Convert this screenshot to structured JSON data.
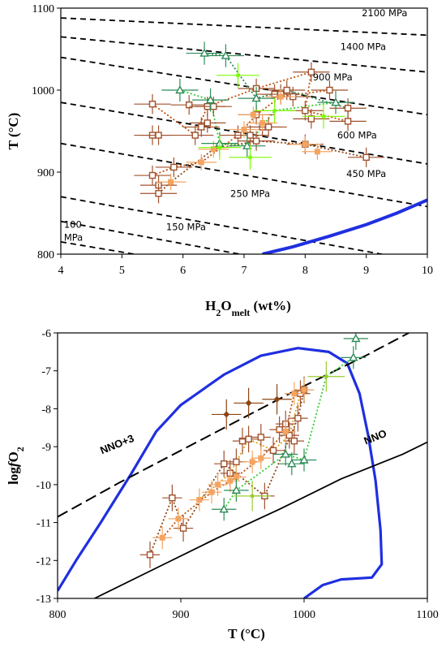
{
  "chart_data": [
    {
      "type": "scatter",
      "xlim": [
        4,
        10
      ],
      "ylim": [
        800,
        1100
      ],
      "x_ticks": [
        "4",
        "5",
        "6",
        "7",
        "8",
        "9",
        "10"
      ],
      "y_ticks": [
        "800",
        "900",
        "1000",
        "1100"
      ],
      "xlabel_main": "H",
      "xlabel_sub1": "2",
      "xlabel_mid": "O",
      "xlabel_sub2": "melt",
      "xlabel_tail": " (wt%)",
      "ylabel": "T (°C)",
      "grid": false,
      "isobars": [
        {
          "label": "2100 MPa",
          "line": [
            [
              4,
              1088
            ],
            [
              10,
              1067
            ]
          ],
          "label_at": [
            9.3,
            1090
          ]
        },
        {
          "label": "1400 MPa",
          "line": [
            [
              4,
              1065
            ],
            [
              10,
              1022
            ]
          ],
          "label_at": [
            8.95,
            1049
          ]
        },
        {
          "label": "900 MPa",
          "line": [
            [
              4,
              1040
            ],
            [
              10,
              970
            ]
          ],
          "label_at": [
            8.45,
            1012
          ]
        },
        {
          "label": "600 MPa",
          "line": [
            [
              4,
              985
            ],
            [
              10,
              910
            ]
          ],
          "label_at": [
            8.85,
            941
          ]
        },
        {
          "label": "450 MPa",
          "line": [
            [
              4,
              935
            ],
            [
              10,
              858
            ]
          ],
          "label_at": [
            9.0,
            894
          ]
        },
        {
          "label": "250 MPa",
          "line": [
            [
              4,
              870
            ],
            [
              10,
              790
            ]
          ],
          "label_at": [
            7.1,
            870
          ]
        },
        {
          "label": "150 MPa",
          "line": [
            [
              4,
              840
            ],
            [
              10,
              758
            ]
          ],
          "label_at": [
            6.05,
            829
          ]
        },
        {
          "label_line1": "100",
          "label_line2": "MPa",
          "line": [
            [
              4,
              815
            ],
            [
              5.2,
              800
            ]
          ],
          "label_at": [
            4.25,
            832
          ]
        }
      ],
      "solidus_curve": [
        [
          7.3,
          800
        ],
        [
          7.8,
          809
        ],
        [
          8.4,
          822
        ],
        [
          9.0,
          836
        ],
        [
          9.5,
          850
        ],
        [
          10,
          866
        ]
      ],
      "series": [
        {
          "marker": "open-square",
          "color": "#a0522d",
          "points": [
            [
              5.5,
              983
            ],
            [
              5.5,
              945
            ],
            [
              5.6,
              945
            ],
            [
              6.1,
              982
            ],
            [
              6.2,
              945
            ],
            [
              6.3,
              955
            ],
            [
              6.4,
              960
            ],
            [
              6.4,
              980
            ],
            [
              6.5,
              980
            ],
            [
              6.9,
              945
            ],
            [
              7.1,
              945
            ],
            [
              7.2,
              938
            ],
            [
              7.2,
              970
            ],
            [
              7.2,
              1002
            ],
            [
              7.3,
              955
            ],
            [
              7.4,
              955
            ],
            [
              7.5,
              995
            ],
            [
              7.6,
              995
            ],
            [
              7.7,
              1000
            ],
            [
              7.8,
              992
            ],
            [
              8.0,
              975
            ],
            [
              8.1,
              1022
            ],
            [
              8.4,
              1000
            ],
            [
              8.7,
              978
            ],
            [
              8.7,
              962
            ],
            [
              8.0,
              934
            ],
            [
              9.0,
              918
            ],
            [
              5.85,
              906
            ],
            [
              5.5,
              896
            ],
            [
              5.6,
              884
            ],
            [
              5.6,
              874
            ],
            [
              8.1,
              965
            ]
          ],
          "error_bar_x": 0.3,
          "error_bar_y": 12
        },
        {
          "marker": "filled-square",
          "color": "#f4a460",
          "points": [
            [
              5.8,
              888
            ],
            [
              6.3,
              912
            ],
            [
              6.5,
              928
            ],
            [
              7.0,
              952
            ],
            [
              7.15,
              970
            ],
            [
              7.3,
              960
            ],
            [
              7.6,
              992
            ],
            [
              8.2,
              925
            ],
            [
              8.0,
              934
            ]
          ],
          "error_bar_x": 0.25,
          "error_bar_y": 10
        },
        {
          "marker": "open-triangle",
          "color": "#2e8b57",
          "points": [
            [
              6.35,
              1045
            ],
            [
              6.7,
              1042
            ],
            [
              5.95,
              1000
            ],
            [
              6.45,
              988
            ],
            [
              7.2,
              990
            ],
            [
              6.6,
              935
            ],
            [
              7.05,
              932
            ],
            [
              8.5,
              985
            ]
          ],
          "error_bar_x": 0.3,
          "error_bar_y": 14
        },
        {
          "marker": "cross",
          "color": "#7cfc00",
          "points": [
            [
              6.9,
              1018
            ],
            [
              7.1,
              918
            ],
            [
              7.5,
              975
            ],
            [
              8.3,
              968
            ],
            [
              6.6,
              930
            ]
          ],
          "error_bar_x": 0.35,
          "error_bar_y": 15
        }
      ],
      "tie_lines": [
        {
          "color": "#c0500a",
          "points": [
            [
              5.5,
              983
            ],
            [
              6.2,
              945
            ],
            [
              6.4,
              980
            ],
            [
              7.2,
              1002
            ],
            [
              8.1,
              1022
            ],
            [
              8.0,
              975
            ],
            [
              8.7,
              962
            ]
          ]
        },
        {
          "color": "#c0500a",
          "points": [
            [
              5.5,
              896
            ],
            [
              5.85,
              906
            ],
            [
              6.3,
              912
            ],
            [
              6.9,
              945
            ],
            [
              7.2,
              970
            ],
            [
              7.6,
              992
            ],
            [
              8.4,
              1000
            ]
          ]
        },
        {
          "color": "#8b4513",
          "points": [
            [
              5.6,
              874
            ],
            [
              5.8,
              888
            ],
            [
              6.5,
              928
            ],
            [
              7.2,
              938
            ],
            [
              8.0,
              934
            ],
            [
              9.0,
              918
            ]
          ]
        },
        {
          "color": "#32cd32",
          "points": [
            [
              5.95,
              1000
            ],
            [
              6.45,
              988
            ],
            [
              6.6,
              935
            ],
            [
              7.05,
              932
            ],
            [
              7.5,
              975
            ],
            [
              8.5,
              985
            ]
          ]
        },
        {
          "color": "#2e8b57",
          "points": [
            [
              6.35,
              1045
            ],
            [
              6.7,
              1042
            ],
            [
              7.2,
              990
            ],
            [
              7.7,
              1000
            ],
            [
              8.7,
              978
            ]
          ]
        }
      ]
    },
    {
      "type": "scatter",
      "xlim": [
        800,
        1100
      ],
      "ylim": [
        -13,
        -6
      ],
      "x_ticks": [
        "800",
        "900",
        "1000",
        "1100"
      ],
      "y_ticks": [
        "-13",
        "-12",
        "-11",
        "-10",
        "-9",
        "-8",
        "-7",
        "-6"
      ],
      "xlabel": "T (°C)",
      "ylabel_main": "log",
      "ylabel_italic": "f",
      "ylabel_mid": "O",
      "ylabel_sub": "2",
      "grid": false,
      "buffers": [
        {
          "label": "NNO+3",
          "style": "dashed",
          "points": [
            [
              800,
              -10.85
            ],
            [
              850,
              -9.95
            ],
            [
              900,
              -9.1
            ],
            [
              950,
              -8.25
            ],
            [
              1000,
              -7.4
            ],
            [
              1050,
              -6.6
            ],
            [
              1085,
              -6.0
            ]
          ],
          "label_at": [
            836,
            -9.2
          ]
        },
        {
          "label": "NNO",
          "style": "solid",
          "points": [
            [
              830,
              -13.0
            ],
            [
              880,
              -12.2
            ],
            [
              930,
              -11.4
            ],
            [
              980,
              -10.65
            ],
            [
              1030,
              -9.85
            ],
            [
              1080,
              -9.2
            ],
            [
              1100,
              -8.88
            ]
          ],
          "label_at": [
            1050,
            -8.95
          ]
        }
      ],
      "envelope": [
        [
          800,
          -12.8
        ],
        [
          815,
          -12.0
        ],
        [
          835,
          -11.0
        ],
        [
          860,
          -9.7
        ],
        [
          880,
          -8.6
        ],
        [
          900,
          -7.9
        ],
        [
          935,
          -7.1
        ],
        [
          965,
          -6.6
        ],
        [
          995,
          -6.4
        ],
        [
          1020,
          -6.5
        ],
        [
          1035,
          -6.8
        ],
        [
          1045,
          -7.6
        ],
        [
          1052,
          -8.7
        ],
        [
          1058,
          -9.9
        ],
        [
          1062,
          -11.2
        ],
        [
          1063,
          -12.1
        ],
        [
          1055,
          -12.45
        ],
        [
          1030,
          -12.5
        ],
        [
          1015,
          -12.65
        ],
        [
          1000,
          -13.0
        ]
      ],
      "series": [
        {
          "marker": "open-square",
          "color": "#a0522d",
          "points": [
            [
              875,
              -11.85
            ],
            [
              893,
              -10.35
            ],
            [
              902,
              -11.15
            ],
            [
              935,
              -9.45
            ],
            [
              940,
              -9.7
            ],
            [
              945,
              -9.4
            ],
            [
              950,
              -8.85
            ],
            [
              955,
              -8.8
            ],
            [
              965,
              -8.75
            ],
            [
              968,
              -10.3
            ],
            [
              975,
              -9.1
            ],
            [
              980,
              -8.55
            ],
            [
              985,
              -8.4
            ],
            [
              988,
              -8.7
            ],
            [
              992,
              -8.85
            ],
            [
              995,
              -8.25
            ],
            [
              997,
              -7.6
            ],
            [
              1000,
              -7.5
            ]
          ],
          "error_bar_x": 8,
          "error_bar_y": 0.35
        },
        {
          "marker": "filled-square",
          "color": "#f4a460",
          "points": [
            [
              885,
              -11.4
            ],
            [
              898,
              -10.9
            ],
            [
              915,
              -10.4
            ],
            [
              925,
              -10.2
            ],
            [
              930,
              -10.0
            ],
            [
              940,
              -9.9
            ],
            [
              945,
              -9.8
            ],
            [
              958,
              -9.4
            ],
            [
              965,
              -9.3
            ],
            [
              985,
              -8.6
            ],
            [
              992,
              -7.6
            ],
            [
              1000,
              -7.5
            ]
          ],
          "error_bar_x": 8,
          "error_bar_y": 0.3
        },
        {
          "marker": "filled-diamond",
          "color": "#8b4513",
          "points": [
            [
              937,
              -8.15
            ],
            [
              955,
              -7.85
            ],
            [
              978,
              -7.75
            ]
          ],
          "error_bar_x": 12,
          "error_bar_y": 0.4
        },
        {
          "marker": "open-triangle",
          "color": "#2e8b57",
          "points": [
            [
              935,
              -10.65
            ],
            [
              945,
              -10.15
            ],
            [
              985,
              -9.2
            ],
            [
              990,
              -9.45
            ],
            [
              1000,
              -9.35
            ],
            [
              1040,
              -6.65
            ],
            [
              1042,
              -6.15
            ]
          ],
          "error_bar_x": 10,
          "error_bar_y": 0.3
        },
        {
          "marker": "cross",
          "color": "#9acd32",
          "points": [
            [
              958,
              -10.3
            ],
            [
              1018,
              -7.15
            ]
          ],
          "error_bar_x": 15,
          "error_bar_y": 0.4
        }
      ],
      "tie_lines": [
        {
          "color": "#8b4513",
          "points": [
            [
              875,
              -11.85
            ],
            [
              893,
              -10.35
            ],
            [
              902,
              -11.15
            ],
            [
              935,
              -9.45
            ],
            [
              968,
              -10.3
            ],
            [
              995,
              -8.25
            ],
            [
              1000,
              -7.5
            ]
          ]
        },
        {
          "color": "#c0500a",
          "points": [
            [
              885,
              -11.4
            ],
            [
              898,
              -10.9
            ],
            [
              925,
              -10.2
            ],
            [
              945,
              -9.8
            ],
            [
              965,
              -9.3
            ],
            [
              985,
              -8.6
            ],
            [
              992,
              -7.6
            ]
          ]
        },
        {
          "color": "#32cd32",
          "points": [
            [
              935,
              -10.65
            ],
            [
              945,
              -10.15
            ],
            [
              985,
              -9.2
            ],
            [
              1000,
              -9.35
            ],
            [
              1018,
              -7.15
            ],
            [
              1040,
              -6.65
            ]
          ]
        },
        {
          "color": "#daa520",
          "points": [
            [
              915,
              -10.4
            ],
            [
              940,
              -9.7
            ],
            [
              955,
              -8.8
            ],
            [
              975,
              -9.1
            ],
            [
              988,
              -8.7
            ],
            [
              997,
              -7.6
            ]
          ]
        }
      ]
    }
  ]
}
